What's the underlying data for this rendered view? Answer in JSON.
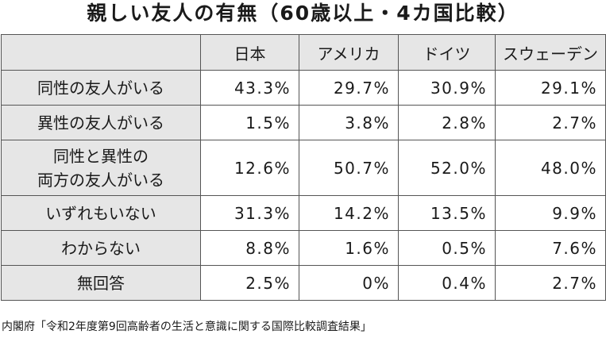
{
  "title": "親しい友人の有無（60歳以上・4カ国比較）",
  "columns": [
    "",
    "日本",
    "アメリカ",
    "ドイツ",
    "スウェーデン"
  ],
  "rows": [
    {
      "label": "同性の友人がいる",
      "values": [
        "43.3%",
        "29.7%",
        "30.9%",
        "29.1%"
      ]
    },
    {
      "label": "異性の友人がいる",
      "values": [
        "1.5%",
        "3.8%",
        "2.8%",
        "2.7%"
      ]
    },
    {
      "label_line1": "同性と異性の",
      "label_line2": "両方の友人がいる",
      "values": [
        "12.6%",
        "50.7%",
        "52.0%",
        "48.0%"
      ]
    },
    {
      "label": "いずれもいない",
      "values": [
        "31.3%",
        "14.2%",
        "13.5%",
        "9.9%"
      ]
    },
    {
      "label": "わからない",
      "values": [
        "8.8%",
        "1.6%",
        "0.5%",
        "7.6%"
      ]
    },
    {
      "label": "無回答",
      "values": [
        "2.5%",
        "0%",
        "0.4%",
        "2.7%"
      ]
    }
  ],
  "source": "内閣府「令和2年度第9回高齢者の生活と意識に関する国際比較調査結果」"
}
